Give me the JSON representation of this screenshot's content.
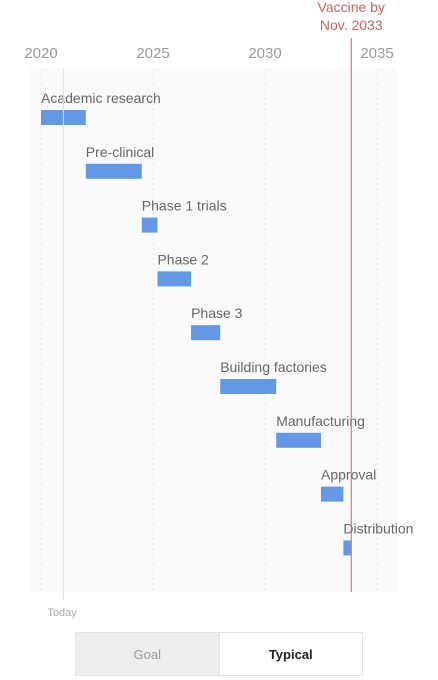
{
  "chart_data": {
    "type": "gantt",
    "x_ticks": [
      2020,
      2025,
      2030,
      2035
    ],
    "xlim": [
      2020,
      2035.8
    ],
    "today_label": "Today",
    "today": 2021.0,
    "goal": {
      "label_line1": "Vaccine by",
      "label_line2": "Nov. 2033",
      "x": 2033.85
    },
    "phases": [
      {
        "name": "Academic research",
        "start": 2020.0,
        "end": 2022.0
      },
      {
        "name": "Pre-clinical",
        "start": 2022.0,
        "end": 2024.5
      },
      {
        "name": "Phase 1 trials",
        "start": 2024.5,
        "end": 2025.2
      },
      {
        "name": "Phase 2",
        "start": 2025.2,
        "end": 2026.7
      },
      {
        "name": "Phase 3",
        "start": 2026.7,
        "end": 2028.0
      },
      {
        "name": "Building factories",
        "start": 2028.0,
        "end": 2030.5
      },
      {
        "name": "Manufacturing",
        "start": 2030.5,
        "end": 2032.5
      },
      {
        "name": "Approval",
        "start": 2032.5,
        "end": 2033.5
      },
      {
        "name": "Distribution",
        "start": 2033.5,
        "end": 2033.85
      }
    ],
    "bar_color": "#6298e6",
    "goal_color": "#c9675a"
  },
  "toggle": {
    "goal_label": "Goal",
    "typical_label": "Typical",
    "selected": "Typical"
  }
}
